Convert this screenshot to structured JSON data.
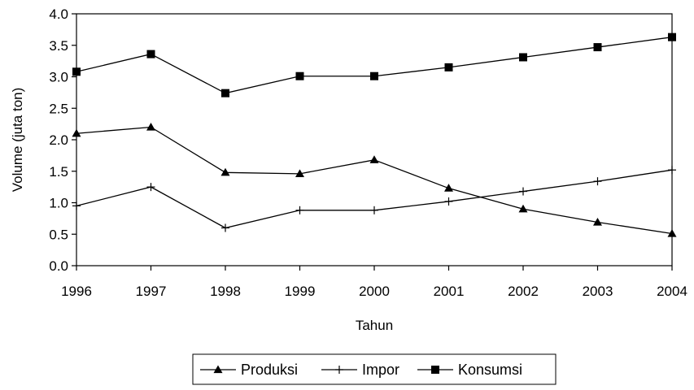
{
  "chart_data": {
    "type": "line",
    "x": [
      1996,
      1997,
      1998,
      1999,
      2000,
      2001,
      2002,
      2003,
      2004
    ],
    "x_tick_labels": [
      "1996",
      "1997",
      "1998",
      "1999",
      "2000",
      "2001",
      "2002",
      "2003",
      "2004"
    ],
    "y_tick_labels": [
      "0.0",
      "0.5",
      "1.0",
      "1.5",
      "2.0",
      "2.5",
      "3.0",
      "3.5",
      "4.0"
    ],
    "ylim": [
      0,
      4
    ],
    "xlabel": "Tahun",
    "ylabel": "Volume (juta ton)",
    "legend_position": "bottom",
    "grid": false,
    "series": [
      {
        "name": "Produksi",
        "marker": "triangle",
        "values": [
          2.1,
          2.2,
          1.48,
          1.46,
          1.68,
          1.23,
          0.9,
          0.69,
          0.51
        ]
      },
      {
        "name": "Impor",
        "marker": "plus",
        "values": [
          0.95,
          1.25,
          0.6,
          0.88,
          0.88,
          1.02,
          1.18,
          1.34,
          1.52
        ]
      },
      {
        "name": "Konsumsi",
        "marker": "square",
        "values": [
          3.08,
          3.36,
          2.74,
          3.01,
          3.01,
          3.15,
          3.31,
          3.47,
          3.63
        ]
      }
    ],
    "colors": {
      "line": "#000000",
      "background": "#ffffff"
    }
  }
}
